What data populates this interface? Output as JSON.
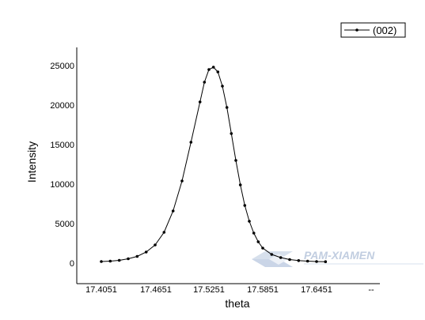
{
  "chart_data": {
    "type": "line",
    "xlabel": "theta",
    "ylabel": "Intensity",
    "xlim": [
      17.37,
      17.73
    ],
    "ylim": [
      -2500,
      27500
    ],
    "x_ticks": [
      "17.4051",
      "17.4651",
      "17.5251",
      "17.5851",
      "17.6451",
      "--"
    ],
    "y_ticks": [
      "0",
      "5000",
      "10000",
      "15000",
      "20000",
      "25000"
    ],
    "legend": "top-right",
    "grid": false,
    "marker_color": "#000000",
    "series": [
      {
        "name": "(002)",
        "x": [
          17.4051,
          17.4151,
          17.4251,
          17.4351,
          17.4451,
          17.4551,
          17.4651,
          17.4751,
          17.4851,
          17.4951,
          17.5051,
          17.5151,
          17.5201,
          17.5251,
          17.5301,
          17.5351,
          17.5401,
          17.5451,
          17.5501,
          17.5551,
          17.5601,
          17.5651,
          17.5701,
          17.5751,
          17.5801,
          17.5851,
          17.5951,
          17.6051,
          17.6151,
          17.6251,
          17.6351,
          17.6451,
          17.6551
        ],
        "y": [
          300,
          350,
          450,
          650,
          950,
          1500,
          2400,
          4000,
          6700,
          10500,
          15400,
          20500,
          23000,
          24600,
          24900,
          24300,
          22500,
          19800,
          16500,
          13100,
          10000,
          7400,
          5400,
          3900,
          2800,
          2000,
          1200,
          800,
          550,
          420,
          350,
          300,
          280
        ]
      }
    ]
  },
  "watermark": {
    "text": "PAM-XIAMEN"
  },
  "icons": {
    "watermark_logo": "diamond-logo-icon"
  }
}
